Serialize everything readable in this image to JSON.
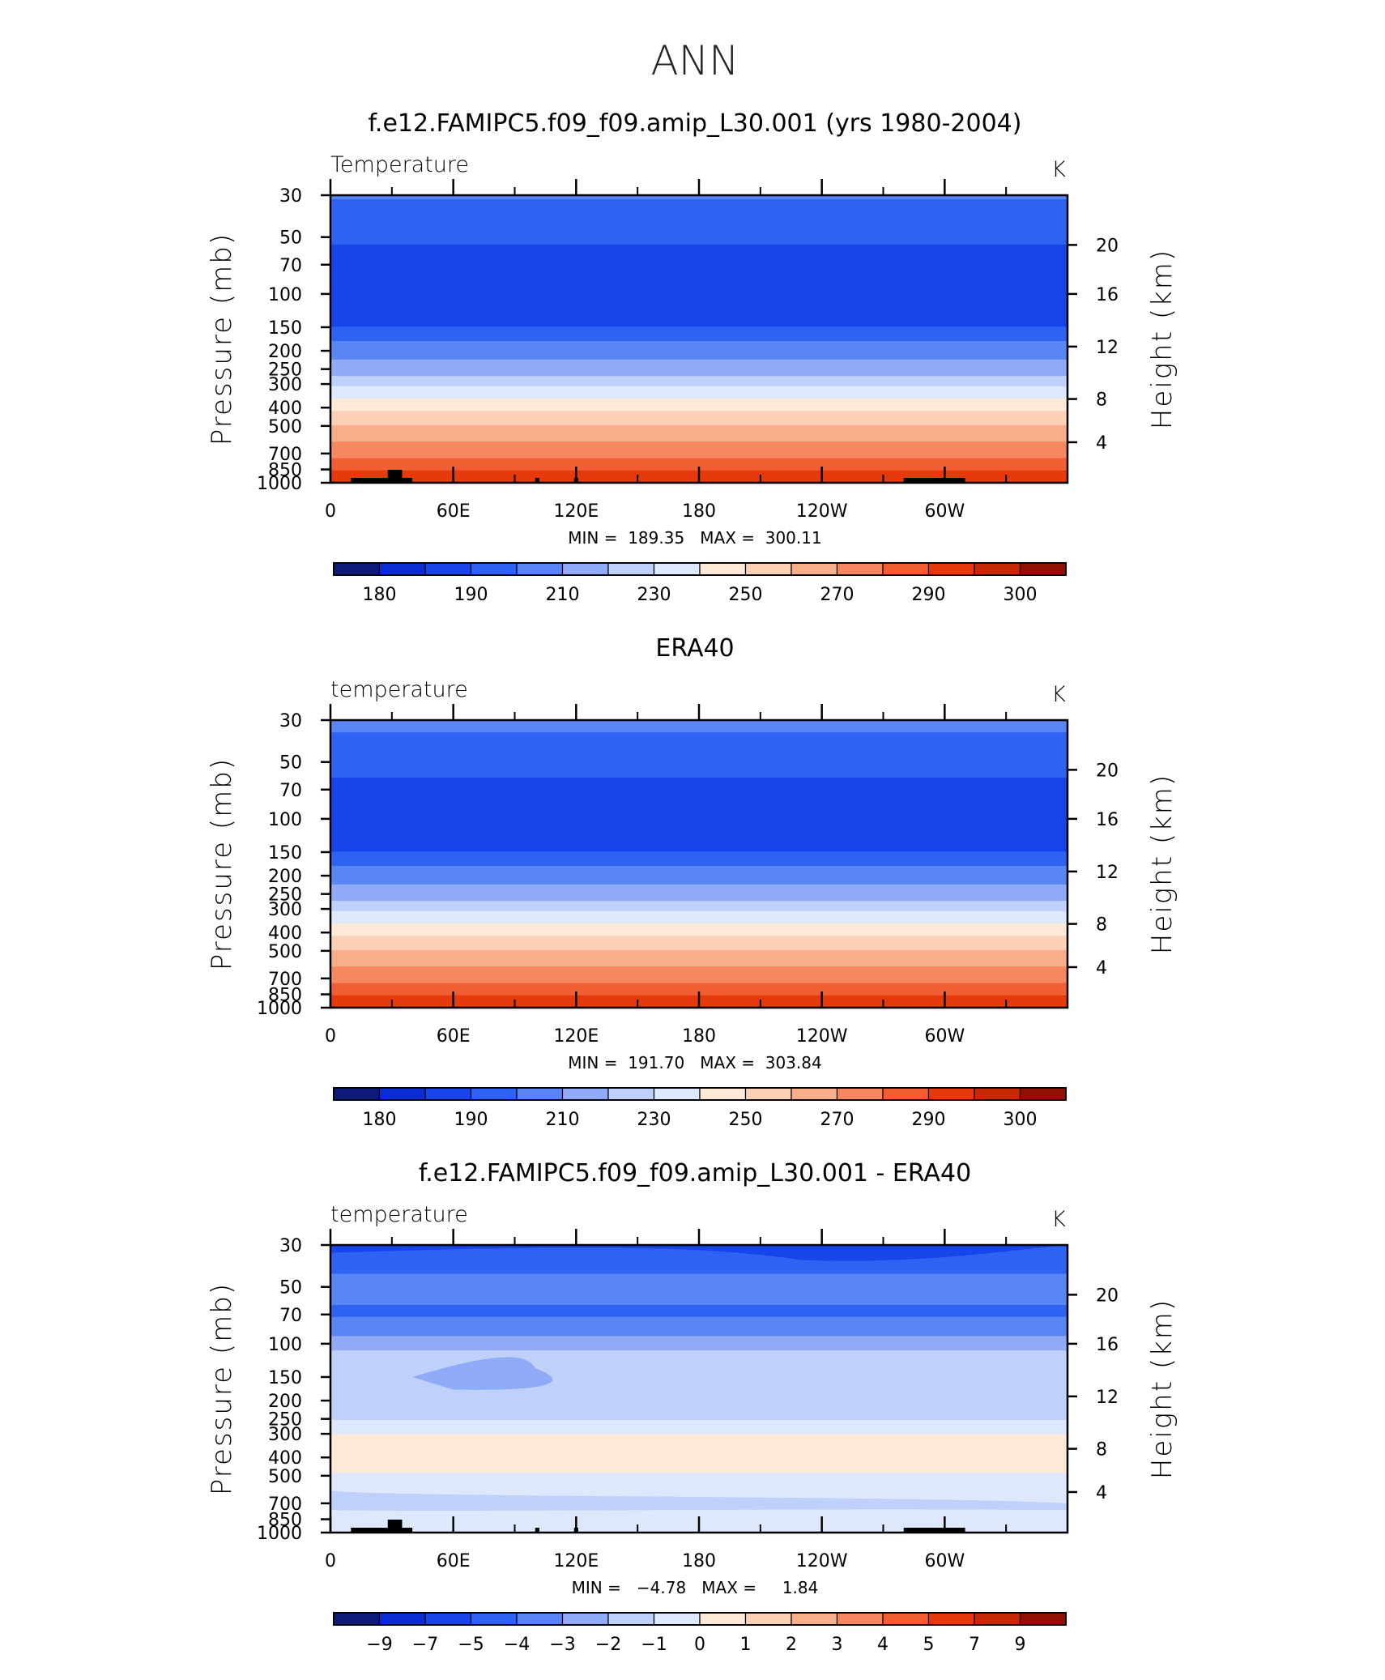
{
  "page_title": "ANN",
  "colors": {
    "temp_scale": [
      "#0d1a7a",
      "#0a2dd1",
      "#1745e8",
      "#2e62f2",
      "#5a86f5",
      "#8fabf8",
      "#bfd0fb",
      "#dde8fc",
      "#fde9d8",
      "#fbd0b4",
      "#f8ae88",
      "#f6875e",
      "#f15e32",
      "#e63a0c",
      "#c42a06",
      "#8e1103"
    ],
    "diff_scale": [
      "#0d1a7a",
      "#0a2dd1",
      "#1745e8",
      "#2e62f2",
      "#5a86f5",
      "#8fabf8",
      "#bfd0fb",
      "#dde8fc",
      "#fde9d8",
      "#fbd0b4",
      "#f8ae88",
      "#f6875e",
      "#f15e32",
      "#e63a0c",
      "#c42a06",
      "#8e1103"
    ],
    "terrain": "#000000"
  },
  "chart_data": [
    {
      "type": "contour",
      "panel_title": "f.e12.FAMIPC5.f09_f09.amip_L30.001 (yrs 1980-2004)",
      "left_label": "Temperature",
      "units": "K",
      "ylabel": "Pressure (mb)",
      "y2label": "Height (km)",
      "xticks": [
        "0",
        "60E",
        "120E",
        "180",
        "120W",
        "60W"
      ],
      "yticks": [
        "30",
        "50",
        "70",
        "100",
        "150",
        "200",
        "250",
        "300",
        "400",
        "500",
        "700",
        "850",
        "1000"
      ],
      "y2ticks": [
        "20",
        "16",
        "12",
        "8",
        "4"
      ],
      "minmax": "MIN =  189.35   MAX =  300.11",
      "colorbar_labels": [
        "180",
        "190",
        "210",
        "230",
        "250",
        "270",
        "290",
        "300"
      ],
      "field": "temp"
    },
    {
      "type": "contour",
      "panel_title": "ERA40",
      "left_label": "temperature",
      "units": "K",
      "ylabel": "Pressure (mb)",
      "y2label": "Height (km)",
      "xticks": [
        "0",
        "60E",
        "120E",
        "180",
        "120W",
        "60W"
      ],
      "yticks": [
        "30",
        "50",
        "70",
        "100",
        "150",
        "200",
        "250",
        "300",
        "400",
        "500",
        "700",
        "850",
        "1000"
      ],
      "y2ticks": [
        "20",
        "16",
        "12",
        "8",
        "4"
      ],
      "minmax": "MIN =  191.70   MAX =  303.84",
      "colorbar_labels": [
        "180",
        "190",
        "210",
        "230",
        "250",
        "270",
        "290",
        "300"
      ],
      "field": "temp_era"
    },
    {
      "type": "contour",
      "panel_title": "f.e12.FAMIPC5.f09_f09.amip_L30.001 - ERA40",
      "left_label": "temperature",
      "units": "K",
      "ylabel": "Pressure (mb)",
      "y2label": "Height (km)",
      "xticks": [
        "0",
        "60E",
        "120E",
        "180",
        "120W",
        "60W"
      ],
      "yticks": [
        "30",
        "50",
        "70",
        "100",
        "150",
        "200",
        "250",
        "300",
        "400",
        "500",
        "700",
        "850",
        "1000"
      ],
      "y2ticks": [
        "20",
        "16",
        "12",
        "8",
        "4"
      ],
      "minmax": "MIN =   −4.78   MAX =     1.84",
      "colorbar_labels": [
        "−9",
        "−7",
        "−5",
        "−4",
        "−3",
        "−2",
        "−1",
        "0",
        "1",
        "2",
        "3",
        "4",
        "5",
        "7",
        "9"
      ],
      "field": "diff"
    }
  ]
}
